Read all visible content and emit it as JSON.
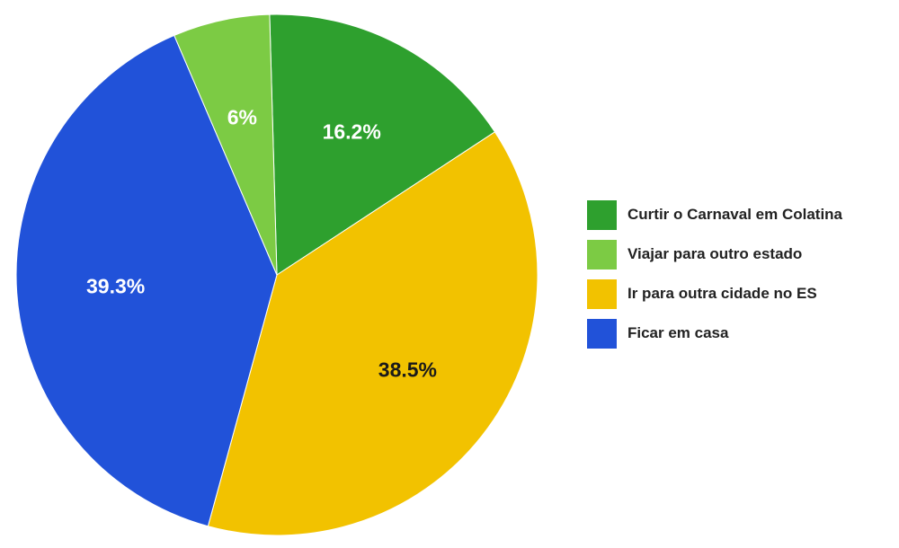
{
  "chart_data": {
    "type": "pie",
    "title": "",
    "slices": [
      {
        "label": "Curtir o Carnaval em Colatina",
        "value": 16.2,
        "display": "16.2%",
        "color": "#2ea02e",
        "label_color": "#ffffff"
      },
      {
        "label": "Ir para outra cidade no ES",
        "value": 38.5,
        "display": "38.5%",
        "color": "#f2c200",
        "label_color": "#1a1a1a"
      },
      {
        "label": "Ficar em casa",
        "value": 39.3,
        "display": "39.3%",
        "color": "#2152d9",
        "label_color": "#ffffff"
      },
      {
        "label": "Viajar para outro estado",
        "value": 6,
        "display": "6%",
        "color": "#7ccb44",
        "label_color": "#ffffff"
      }
    ],
    "legend": {
      "placement": "right",
      "items": [
        {
          "label": "Curtir o Carnaval em Colatina",
          "color": "#2ea02e"
        },
        {
          "label": "Viajar para outro estado",
          "color": "#7ccb44"
        },
        {
          "label": "Ir para outra cidade no ES",
          "color": "#f2c200"
        },
        {
          "label": "Ficar em casa",
          "color": "#2152d9"
        }
      ]
    }
  }
}
